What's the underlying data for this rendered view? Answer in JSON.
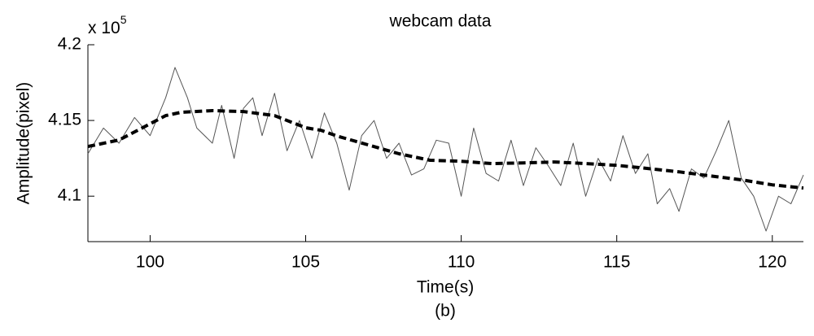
{
  "chart_data": {
    "type": "line",
    "title": "webcam data",
    "multiplier": {
      "base": "x 10",
      "exponent": "5"
    },
    "ylabel": "Amplitude(pixel)",
    "xlabel": "Time(s)",
    "caption": "(b)",
    "xlim": [
      98,
      121
    ],
    "ylim": [
      4.07,
      4.2
    ],
    "xticks": [
      100,
      105,
      110,
      115,
      120
    ],
    "yticks": [
      4.1,
      4.15,
      4.2
    ],
    "series": [
      {
        "color": "#555555",
        "style": "solid",
        "x": [
          98,
          98.5,
          99,
          99.5,
          100,
          100.5,
          100.8,
          101.2,
          101.5,
          102,
          102.3,
          102.7,
          103,
          103.3,
          103.6,
          104,
          104.4,
          104.8,
          105.2,
          105.6,
          106,
          106.4,
          106.8,
          107.2,
          107.6,
          108,
          108.4,
          108.8,
          109.2,
          109.6,
          110,
          110.4,
          110.8,
          111.2,
          111.6,
          112,
          112.4,
          112.8,
          113.2,
          113.6,
          114,
          114.4,
          114.8,
          115.2,
          115.6,
          116,
          116.3,
          116.7,
          117,
          117.4,
          117.8,
          118.2,
          118.6,
          119,
          119.4,
          119.8,
          120.2,
          120.6,
          121
        ],
        "values": [
          4.128,
          4.145,
          4.135,
          4.152,
          4.14,
          4.165,
          4.185,
          4.165,
          4.145,
          4.135,
          4.16,
          4.125,
          4.158,
          4.165,
          4.14,
          4.168,
          4.13,
          4.15,
          4.125,
          4.155,
          4.135,
          4.104,
          4.14,
          4.15,
          4.125,
          4.135,
          4.114,
          4.118,
          4.137,
          4.135,
          4.1,
          4.145,
          4.115,
          4.11,
          4.137,
          4.107,
          4.132,
          4.12,
          4.107,
          4.135,
          4.1,
          4.125,
          4.11,
          4.14,
          4.115,
          4.128,
          4.095,
          4.105,
          4.09,
          4.118,
          4.112,
          4.13,
          4.15,
          4.112,
          4.1,
          4.077,
          4.1,
          4.095,
          4.114
        ]
      },
      {
        "color": "#000000",
        "style": "dashed",
        "x": [
          98,
          99,
          100,
          100.5,
          101,
          102,
          103,
          104,
          105,
          105.5,
          106,
          107,
          108,
          109,
          110,
          111,
          112,
          113,
          114,
          115,
          116,
          117,
          118,
          119,
          120,
          121
        ],
        "values": [
          4.1328,
          4.1371,
          4.1478,
          4.1532,
          4.1554,
          4.1565,
          4.1559,
          4.1532,
          4.1452,
          4.1435,
          4.1398,
          4.1339,
          4.128,
          4.1237,
          4.1231,
          4.1215,
          4.122,
          4.1226,
          4.1215,
          4.1204,
          4.1183,
          4.1161,
          4.1134,
          4.1108,
          4.1075,
          4.1054
        ]
      }
    ]
  }
}
